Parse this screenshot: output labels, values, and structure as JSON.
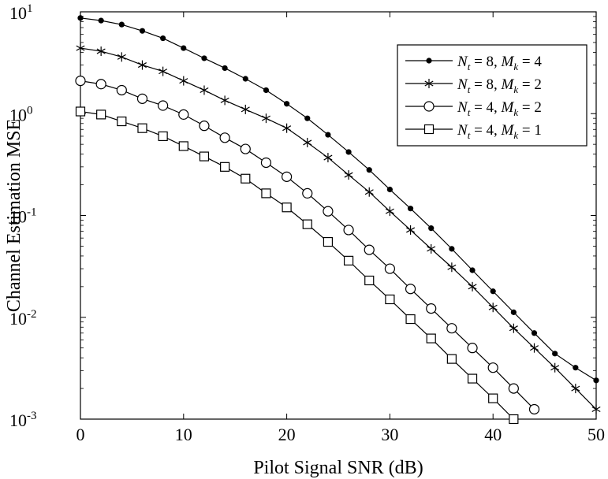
{
  "chart_data": {
    "type": "line",
    "title": "",
    "xlabel": "Pilot Signal SNR (dB)",
    "ylabel": "Channel Estimation MSE",
    "xlim": [
      0,
      50
    ],
    "ylim": [
      0.001,
      10
    ],
    "yscale": "log",
    "grid": false,
    "legend_position": "top-right",
    "x_ticks": [
      {
        "value": 0,
        "label": "0"
      },
      {
        "value": 10,
        "label": "10"
      },
      {
        "value": 20,
        "label": "20"
      },
      {
        "value": 30,
        "label": "30"
      },
      {
        "value": 40,
        "label": "40"
      },
      {
        "value": 50,
        "label": "50"
      }
    ],
    "y_ticks": [
      {
        "value": 10,
        "base": "10",
        "exp": "1"
      },
      {
        "value": 1,
        "base": "10",
        "exp": "0"
      },
      {
        "value": 0.1,
        "base": "10",
        "exp": "-1"
      },
      {
        "value": 0.01,
        "base": "10",
        "exp": "-2"
      },
      {
        "value": 0.001,
        "base": "10",
        "exp": "-3"
      }
    ],
    "series": [
      {
        "name": {
          "a": "N",
          "as": "t",
          "eq1": " = 8, ",
          "b": "M",
          "bs": "k",
          "eq2": " = 4"
        },
        "marker": "dot",
        "x": [
          0,
          2,
          4,
          6,
          8,
          10,
          12,
          14,
          16,
          18,
          20,
          22,
          24,
          26,
          28,
          30,
          32,
          34,
          36,
          38,
          40,
          42,
          44,
          46,
          48,
          50
        ],
        "y": [
          8.7,
          8.2,
          7.5,
          6.5,
          5.5,
          4.4,
          3.5,
          2.8,
          2.2,
          1.7,
          1.25,
          0.9,
          0.62,
          0.42,
          0.28,
          0.18,
          0.117,
          0.075,
          0.047,
          0.029,
          0.018,
          0.0112,
          0.007,
          0.0044,
          0.0032,
          0.0024
        ]
      },
      {
        "name": {
          "a": "N",
          "as": "t",
          "eq1": " = 8, ",
          "b": "M",
          "bs": "k",
          "eq2": " = 2"
        },
        "marker": "star",
        "x": [
          0,
          2,
          4,
          6,
          8,
          10,
          12,
          14,
          16,
          18,
          20,
          22,
          24,
          26,
          28,
          30,
          32,
          34,
          36,
          38,
          40,
          42,
          44,
          46,
          48,
          50
        ],
        "y": [
          4.4,
          4.1,
          3.6,
          3.0,
          2.6,
          2.1,
          1.7,
          1.35,
          1.1,
          0.9,
          0.72,
          0.52,
          0.37,
          0.25,
          0.17,
          0.11,
          0.072,
          0.047,
          0.031,
          0.02,
          0.0125,
          0.0078,
          0.005,
          0.0032,
          0.002,
          0.00125
        ]
      },
      {
        "name": {
          "a": "N",
          "as": "t",
          "eq1": " = 4, ",
          "b": "M",
          "bs": "k",
          "eq2": " = 2"
        },
        "marker": "circle",
        "x": [
          0,
          2,
          4,
          6,
          8,
          10,
          12,
          14,
          16,
          18,
          20,
          22,
          24,
          26,
          28,
          30,
          32,
          34,
          36,
          38,
          40,
          42,
          44
        ],
        "y": [
          2.1,
          1.95,
          1.7,
          1.4,
          1.2,
          0.98,
          0.76,
          0.58,
          0.45,
          0.33,
          0.24,
          0.165,
          0.11,
          0.072,
          0.046,
          0.03,
          0.019,
          0.0122,
          0.0078,
          0.005,
          0.0032,
          0.002,
          0.00125
        ]
      },
      {
        "name": {
          "a": "N",
          "as": "t",
          "eq1": " = 4, ",
          "b": "M",
          "bs": "k",
          "eq2": " = 1"
        },
        "marker": "square",
        "x": [
          0,
          2,
          4,
          6,
          8,
          10,
          12,
          14,
          16,
          18,
          20,
          22,
          24,
          26,
          28,
          30,
          32,
          34,
          36,
          38,
          40,
          42
        ],
        "y": [
          1.05,
          0.98,
          0.84,
          0.72,
          0.6,
          0.48,
          0.38,
          0.3,
          0.23,
          0.165,
          0.12,
          0.082,
          0.055,
          0.036,
          0.023,
          0.015,
          0.0096,
          0.0062,
          0.0039,
          0.0025,
          0.0016,
          0.001
        ]
      }
    ]
  }
}
